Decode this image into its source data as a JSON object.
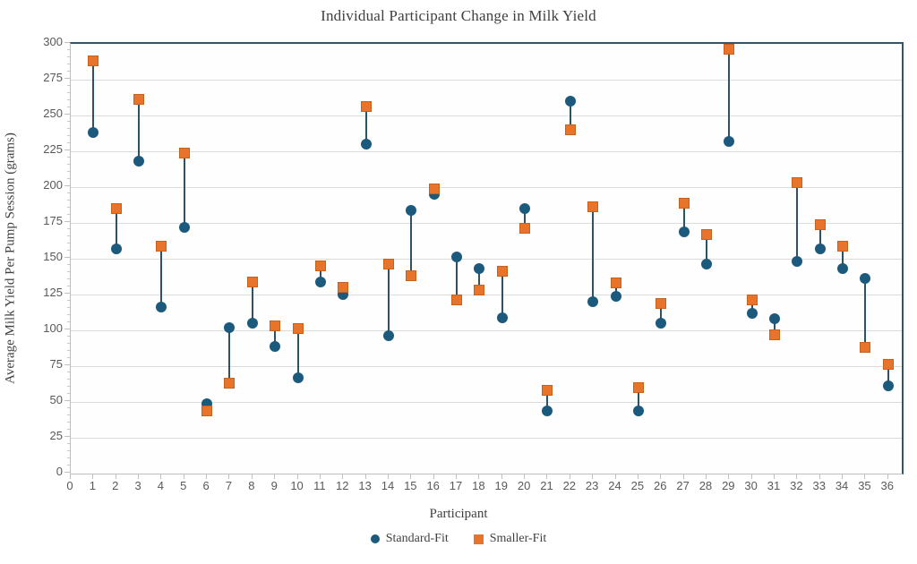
{
  "title": "Individual Participant Change in Milk Yield",
  "colors": {
    "standard_fit": "#1c5a7d",
    "smaller_fit": "#e8732a",
    "smaller_fit_border": "#c8611c",
    "connector_line": "#2e5265",
    "gridline": "#dcdcdc",
    "axis_line": "#bfbfbf",
    "plot_border": "#2f566b",
    "tick_text": "#595959",
    "label_text": "#3f3f3f"
  },
  "legend": {
    "items": [
      {
        "label": "Standard-Fit",
        "marker": "circle-icon",
        "color": "#1c5a7d"
      },
      {
        "label": "Smaller-Fit",
        "marker": "square-icon",
        "color": "#e8732a"
      }
    ]
  },
  "chart_data": {
    "type": "scatter",
    "title": "Individual Participant Change in Milk Yield",
    "xlabel": "Participant",
    "ylabel": "Average Milk Yield Per Pump Session (grams)",
    "xlim": [
      0,
      36.6
    ],
    "ylim": [
      0,
      300
    ],
    "y_tick_step": 25,
    "y_minor_tick_step": 5,
    "y_ticks": [
      0,
      25,
      50,
      75,
      100,
      125,
      150,
      175,
      200,
      225,
      250,
      275,
      300
    ],
    "x_ticks": [
      0,
      1,
      2,
      3,
      4,
      5,
      6,
      7,
      8,
      9,
      10,
      11,
      12,
      13,
      14,
      15,
      16,
      17,
      18,
      19,
      20,
      21,
      22,
      23,
      24,
      25,
      26,
      27,
      28,
      29,
      30,
      31,
      32,
      33,
      34,
      35,
      36
    ],
    "x": [
      1,
      2,
      3,
      4,
      5,
      6,
      7,
      8,
      9,
      10,
      11,
      12,
      13,
      14,
      15,
      16,
      17,
      18,
      19,
      20,
      21,
      22,
      23,
      24,
      25,
      26,
      27,
      28,
      29,
      30,
      31,
      32,
      33,
      34,
      35,
      36
    ],
    "grid": true,
    "legend_position": "bottom",
    "connectors": true,
    "series": [
      {
        "name": "Standard-Fit",
        "marker": "circle",
        "color": "#1c5a7d",
        "values": [
          238,
          157,
          218,
          116,
          172,
          49,
          102,
          105,
          89,
          67,
          134,
          125,
          230,
          96,
          184,
          195,
          151,
          143,
          109,
          185,
          44,
          260,
          120,
          124,
          44,
          105,
          169,
          146,
          232,
          112,
          108,
          148,
          157,
          143,
          136,
          61
        ]
      },
      {
        "name": "Smaller-Fit",
        "marker": "square",
        "color": "#e8732a",
        "values": [
          288,
          185,
          261,
          159,
          224,
          44,
          63,
          134,
          103,
          101,
          145,
          130,
          256,
          146,
          138,
          199,
          121,
          128,
          141,
          171,
          58,
          240,
          186,
          133,
          60,
          119,
          189,
          167,
          296,
          121,
          97,
          203,
          174,
          159,
          88,
          76
        ]
      }
    ]
  }
}
